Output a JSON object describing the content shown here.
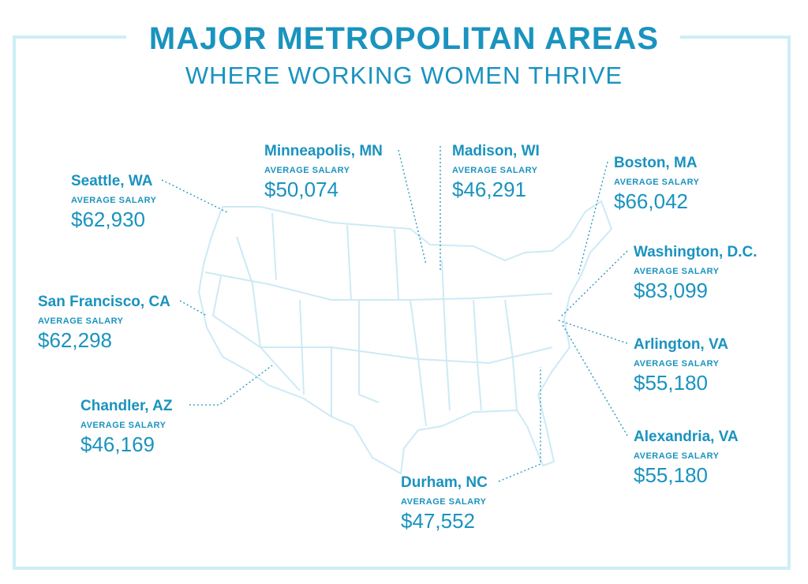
{
  "header": {
    "title": "MAJOR METROPOLITAN AREAS",
    "subtitle": "WHERE WORKING WOMEN THRIVE"
  },
  "cities": [
    {
      "name": "Seattle, WA",
      "label": "AVERAGE SALARY",
      "salary": "$62,930"
    },
    {
      "name": "Minneapolis, MN",
      "label": "AVERAGE SALARY",
      "salary": "$50,074"
    },
    {
      "name": "Madison, WI",
      "label": "AVERAGE SALARY",
      "salary": "$46,291"
    },
    {
      "name": "Boston, MA",
      "label": "AVERAGE SALARY",
      "salary": "$66,042"
    },
    {
      "name": "Washington, D.C.",
      "label": "AVERAGE SALARY",
      "salary": "$83,099"
    },
    {
      "name": "San Francisco, CA",
      "label": "AVERAGE SALARY",
      "salary": "$62,298"
    },
    {
      "name": "Arlington, VA",
      "label": "AVERAGE SALARY",
      "salary": "$55,180"
    },
    {
      "name": "Chandler, AZ",
      "label": "AVERAGE SALARY",
      "salary": "$46,169"
    },
    {
      "name": "Durham, NC",
      "label": "AVERAGE SALARY",
      "salary": "$47,552"
    },
    {
      "name": "Alexandria, VA",
      "label": "AVERAGE SALARY",
      "salary": "$55,180"
    }
  ]
}
